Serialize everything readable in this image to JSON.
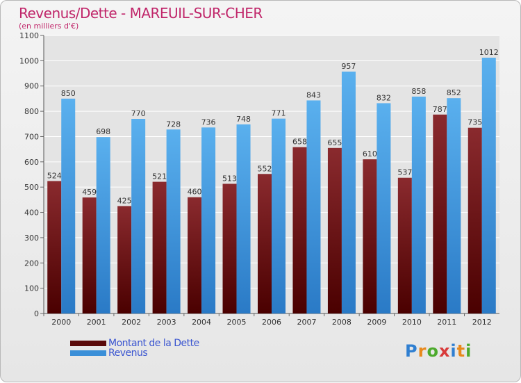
{
  "header": {
    "title": "Revenus/Dette - MAREUIL-SUR-CHER",
    "subtitle": "(en milliers d'€)"
  },
  "chart_data": {
    "type": "bar",
    "categories": [
      "2000",
      "2001",
      "2002",
      "2003",
      "2004",
      "2005",
      "2006",
      "2007",
      "2008",
      "2009",
      "2010",
      "2011",
      "2012"
    ],
    "series": [
      {
        "name": "Montant de la Dette",
        "color": "#6e0f12",
        "values": [
          524,
          459,
          425,
          521,
          460,
          513,
          552,
          658,
          655,
          610,
          537,
          787,
          735
        ]
      },
      {
        "name": "Revenus",
        "color": "#3a8fd8",
        "values": [
          850,
          698,
          770,
          728,
          736,
          748,
          771,
          843,
          957,
          832,
          858,
          852,
          1012
        ]
      }
    ],
    "ylim": [
      0,
      1100
    ],
    "yticks": [
      0,
      100,
      200,
      300,
      400,
      500,
      600,
      700,
      800,
      900,
      1000,
      1100
    ],
    "grid": true,
    "legend_position": "bottom-left"
  },
  "legend": {
    "debt_label": "Montant de la Dette",
    "revenue_label": "Revenus"
  },
  "logo": {
    "text": "Proxiti",
    "letters": [
      {
        "ch": "P",
        "color": "#2f7fd1"
      },
      {
        "ch": "r",
        "color": "#e8891c"
      },
      {
        "ch": "o",
        "color": "#4caa2c"
      },
      {
        "ch": "x",
        "color": "#d83a3a"
      },
      {
        "ch": "i",
        "color": "#2f7fd1"
      },
      {
        "ch": "t",
        "color": "#e8891c"
      },
      {
        "ch": "i",
        "color": "#4caa2c"
      }
    ]
  }
}
